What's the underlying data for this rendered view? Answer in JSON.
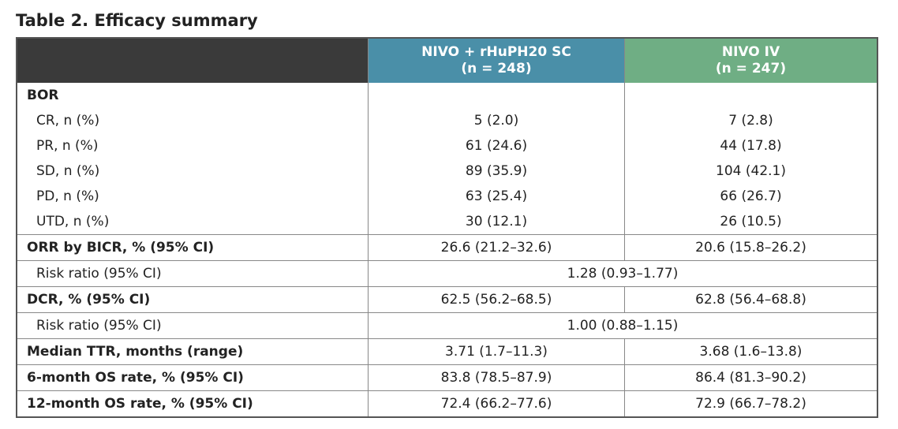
{
  "title": "Table 2. Efficacy summary",
  "table": {
    "headers": [
      {
        "name": "NIVO + rHuPH20 SC",
        "n": "(n = 248)"
      },
      {
        "name": "NIVO IV",
        "n": "(n = 247)"
      }
    ],
    "rows": [
      {
        "label": "BOR",
        "items": [
          {
            "label": "CR, n (%)",
            "values": [
              "5 (2.0)",
              "7 (2.8)"
            ]
          },
          {
            "label": "PR, n (%)",
            "values": [
              "61 (24.6)",
              "44 (17.8)"
            ]
          },
          {
            "label": "SD, n (%)",
            "values": [
              "89 (35.9)",
              "104 (42.1)"
            ]
          },
          {
            "label": "PD, n (%)",
            "values": [
              "63 (25.4)",
              "66 (26.7)"
            ]
          },
          {
            "label": "UTD, n (%)",
            "values": [
              "30 (12.1)",
              "26 (10.5)"
            ]
          }
        ]
      },
      {
        "label": "ORR by BICR, % (95% CI)",
        "values": [
          "26.6 (21.2–32.6)",
          "20.6 (15.8–26.2)"
        ]
      },
      {
        "label": "Risk ratio (95% CI)",
        "indent": true,
        "values": [
          "1.28 (0.93–1.77)"
        ]
      },
      {
        "label": "DCR, % (95% CI)",
        "values": [
          "62.5 (56.2–68.5)",
          "62.8 (56.4–68.8)"
        ]
      },
      {
        "label": "Risk ratio (95% CI)",
        "indent": true,
        "values": [
          "1.00 (0.88–1.15)"
        ]
      },
      {
        "label": "Median TTR, months (range)",
        "values": [
          "3.71 (1.7–11.3)",
          "3.68 (1.6–13.8)"
        ]
      },
      {
        "label": "6-month OS rate, % (95% CI)",
        "values": [
          "83.8 (78.5–87.9)",
          "86.4 (81.3–90.2)"
        ]
      },
      {
        "label": "12-month OS rate, % (95% CI)",
        "values": [
          "72.4 (66.2–77.6)",
          "72.9 (66.7–78.2)"
        ]
      }
    ]
  }
}
